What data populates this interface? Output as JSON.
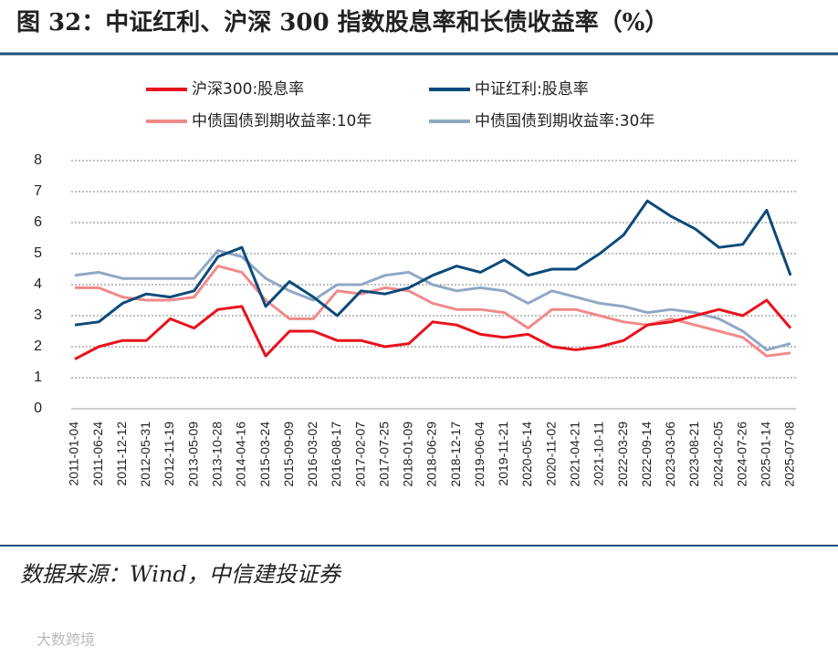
{
  "chart_data": {
    "type": "line",
    "title": "图 32：中证红利、沪深 300 指数股息率和长债收益率（%）",
    "source": "数据来源：Wind，中信建投证券",
    "watermark": "大数跨境",
    "categories": [
      "2011-01-04",
      "2011-06-24",
      "2011-12-12",
      "2012-05-31",
      "2012-11-19",
      "2013-05-09",
      "2013-10-28",
      "2014-04-16",
      "2015-03-24",
      "2015-09-09",
      "2016-03-02",
      "2016-08-17",
      "2017-02-07",
      "2017-07-25",
      "2018-01-09",
      "2018-06-29",
      "2018-12-17",
      "2019-06-04",
      "2019-11-21",
      "2020-05-14",
      "2020-11-02",
      "2021-04-21",
      "2021-10-11",
      "2022-03-29",
      "2022-09-14",
      "2023-03-06",
      "2023-08-21",
      "2024-02-05",
      "2024-07-26",
      "2025-01-14",
      "2025-07-08"
    ],
    "series": [
      {
        "name": "沪深300:股息率",
        "color": "#e8121b",
        "values": [
          1.6,
          2.0,
          2.2,
          2.2,
          2.9,
          2.6,
          3.2,
          3.3,
          1.7,
          2.5,
          2.5,
          2.2,
          2.2,
          2.0,
          2.1,
          2.8,
          2.7,
          2.4,
          2.3,
          2.4,
          2.0,
          1.9,
          2.0,
          2.2,
          2.7,
          2.8,
          3.0,
          3.2,
          3.0,
          3.5,
          2.6
        ]
      },
      {
        "name": "中证红利:股息率",
        "color": "#0c4a7a",
        "values": [
          2.7,
          2.8,
          3.4,
          3.7,
          3.6,
          3.8,
          4.9,
          5.2,
          3.3,
          4.1,
          3.6,
          3.0,
          3.8,
          3.7,
          3.9,
          4.3,
          4.6,
          4.4,
          4.8,
          4.3,
          4.5,
          4.5,
          5.0,
          5.6,
          6.7,
          6.2,
          5.8,
          5.2,
          5.3,
          6.4,
          4.3
        ]
      },
      {
        "name": "中债国债到期收益率:10年",
        "color": "#f08a8a",
        "values": [
          3.9,
          3.9,
          3.6,
          3.5,
          3.5,
          3.6,
          4.6,
          4.4,
          3.5,
          2.9,
          2.9,
          3.8,
          3.7,
          3.9,
          3.8,
          3.4,
          3.2,
          3.2,
          3.1,
          2.6,
          3.2,
          3.2,
          3.0,
          2.8,
          2.7,
          2.9,
          2.7,
          2.5,
          2.3,
          1.7,
          1.8
        ]
      },
      {
        "name": "中债国债到期收益率:30年",
        "color": "#8fa8c4",
        "values": [
          4.3,
          4.4,
          4.2,
          4.2,
          4.2,
          4.2,
          5.1,
          4.9,
          4.2,
          3.8,
          3.5,
          4.0,
          4.0,
          4.3,
          4.4,
          4.0,
          3.8,
          3.9,
          3.8,
          3.4,
          3.8,
          3.6,
          3.4,
          3.3,
          3.1,
          3.2,
          3.1,
          2.9,
          2.5,
          1.9,
          2.1
        ]
      }
    ],
    "ylim": [
      0,
      8
    ],
    "yticks": [
      0,
      1,
      2,
      3,
      4,
      5,
      6,
      7,
      8
    ],
    "grid": true
  }
}
